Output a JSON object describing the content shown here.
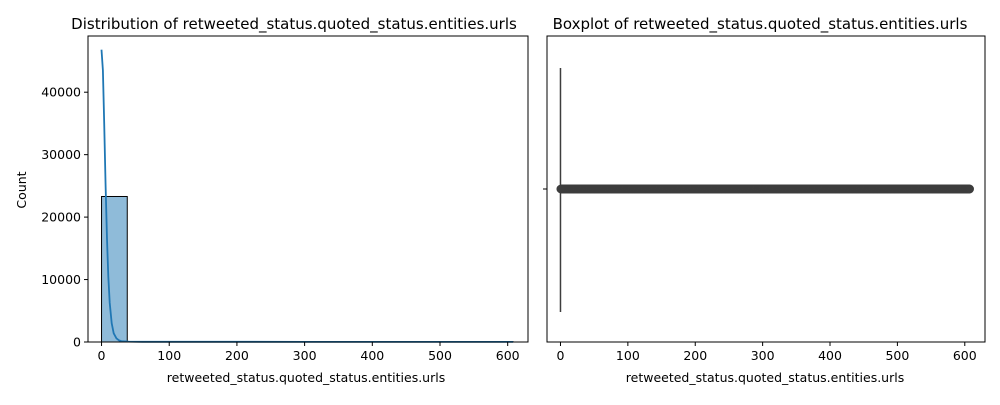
{
  "chart_data": [
    {
      "type": "bar",
      "title": "Distribution of retweeted_status.quoted_status.entities.urls",
      "xlabel": "retweeted_status.quoted_status.entities.urls",
      "ylabel": "Count",
      "xlim": [
        -20,
        630
      ],
      "ylim": [
        0,
        49000
      ],
      "xticks": [
        "0",
        "100",
        "200",
        "300",
        "400",
        "500",
        "600"
      ],
      "yticks": [
        "0",
        "10000",
        "20000",
        "30000",
        "40000"
      ],
      "bar_color": "#1f77b4",
      "bar_alpha": 0.5,
      "bins": [
        {
          "start": 0,
          "end": 38,
          "count": 23300
        },
        {
          "start": 38,
          "end": 76,
          "count": 80
        },
        {
          "start": 76,
          "end": 114,
          "count": 60
        },
        {
          "start": 114,
          "end": 152,
          "count": 50
        },
        {
          "start": 152,
          "end": 190,
          "count": 50
        },
        {
          "start": 190,
          "end": 228,
          "count": 50
        },
        {
          "start": 228,
          "end": 266,
          "count": 40
        },
        {
          "start": 266,
          "end": 304,
          "count": 40
        },
        {
          "start": 304,
          "end": 342,
          "count": 40
        },
        {
          "start": 342,
          "end": 380,
          "count": 40
        },
        {
          "start": 380,
          "end": 418,
          "count": 40
        },
        {
          "start": 418,
          "end": 456,
          "count": 40
        },
        {
          "start": 456,
          "end": 494,
          "count": 40
        },
        {
          "start": 494,
          "end": 532,
          "count": 40
        },
        {
          "start": 532,
          "end": 570,
          "count": 40
        },
        {
          "start": 570,
          "end": 608,
          "count": 40
        }
      ],
      "kde": {
        "color": "#1f77b4",
        "x": [
          0,
          2,
          4,
          6,
          8,
          10,
          12,
          15,
          18,
          22,
          26,
          30,
          40,
          60,
          100,
          200,
          300,
          400,
          500,
          608
        ],
        "y": [
          46800,
          43500,
          35000,
          25000,
          16500,
          10500,
          6300,
          3000,
          1400,
          600,
          250,
          120,
          60,
          40,
          30,
          25,
          20,
          20,
          20,
          20
        ]
      }
    },
    {
      "type": "box",
      "title": "Boxplot of retweeted_status.quoted_status.entities.urls",
      "xlabel": "retweeted_status.quoted_status.entities.urls",
      "xlim": [
        -20,
        630
      ],
      "xticks": [
        "0",
        "100",
        "200",
        "300",
        "400",
        "500",
        "600"
      ],
      "box": {
        "min": 0,
        "q1": 0,
        "median": 0,
        "q3": 0,
        "max": 0
      },
      "outliers_range": [
        1,
        608
      ],
      "outlier_color": "#3d3d3d"
    }
  ]
}
